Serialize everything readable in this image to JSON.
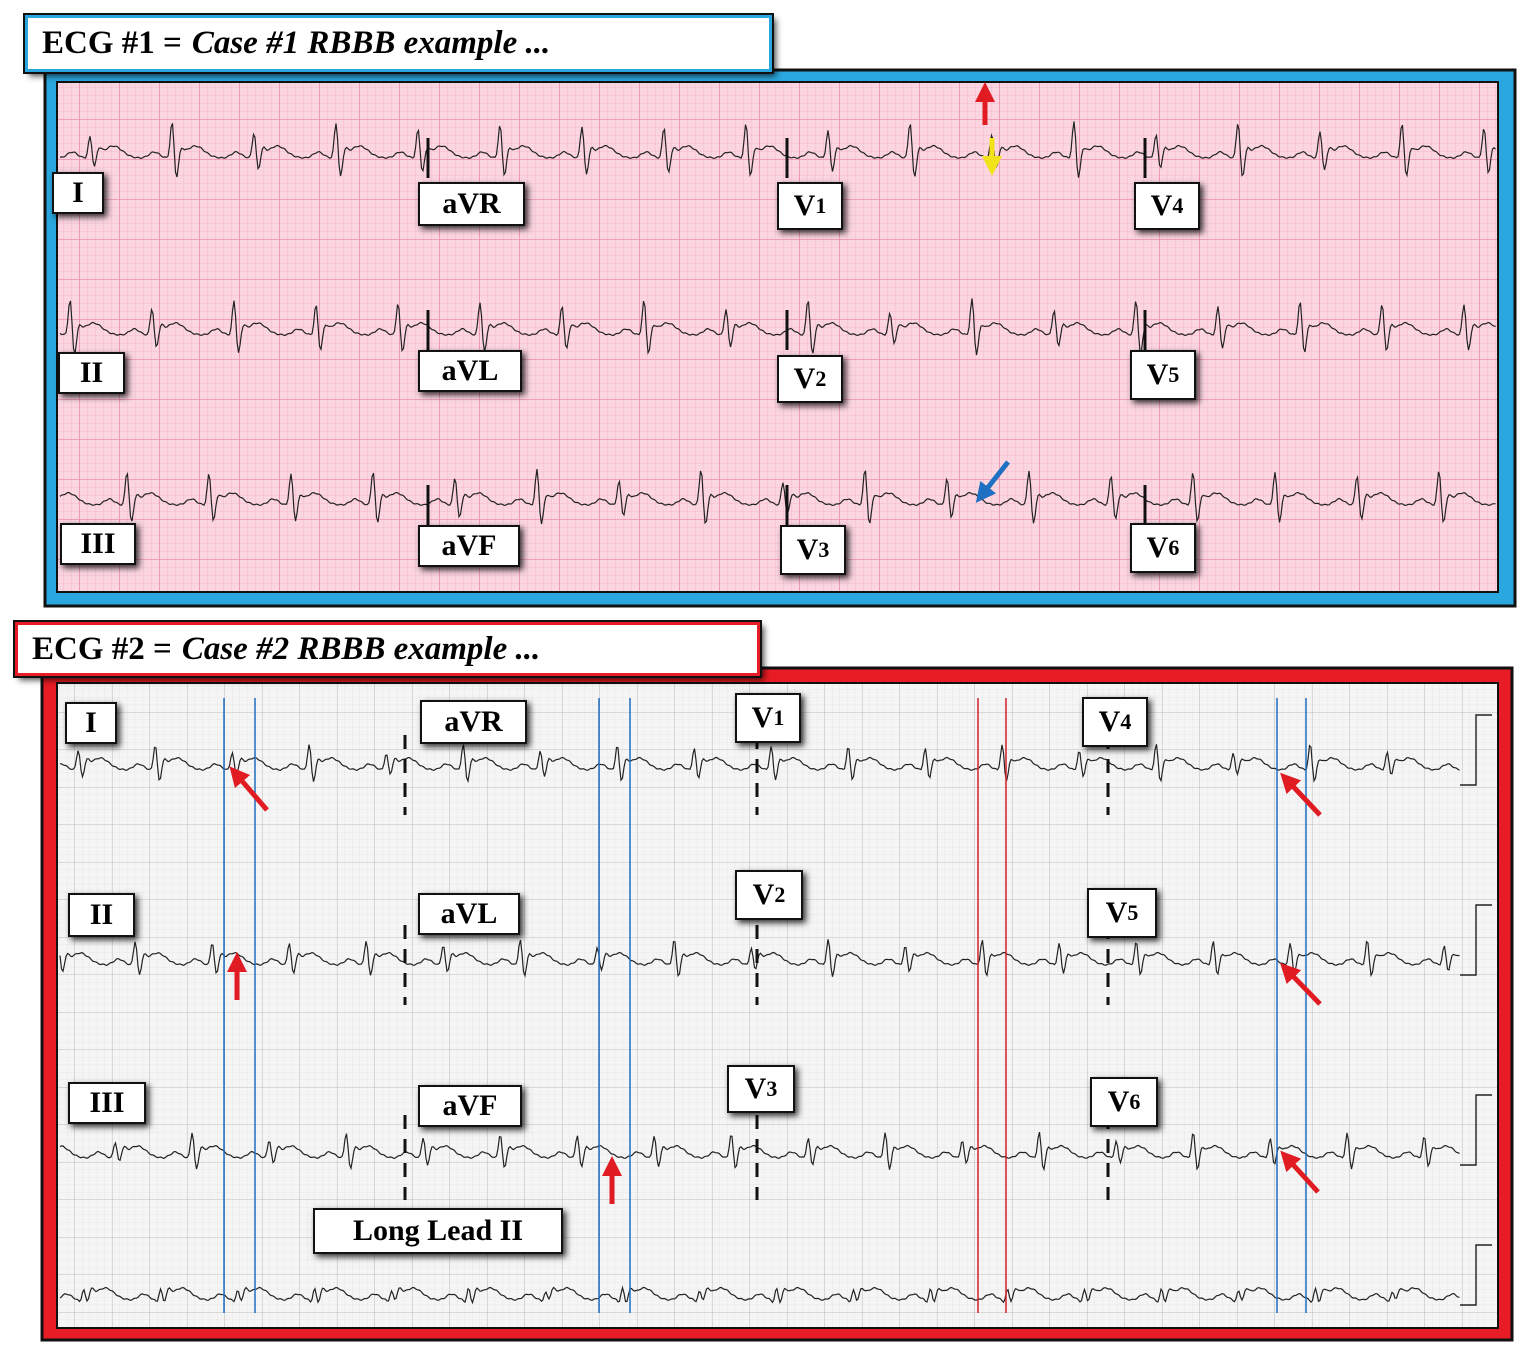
{
  "panels": [
    {
      "title": {
        "prefix": "ECG #1 =",
        "case": "Case #1 RBBB example ..."
      },
      "leads": [
        {
          "name": "I"
        },
        {
          "name": "aVR"
        },
        {
          "name": "V",
          "sub": "1"
        },
        {
          "name": "V",
          "sub": "4"
        },
        {
          "name": "II"
        },
        {
          "name": "aVL"
        },
        {
          "name": "V",
          "sub": "2"
        },
        {
          "name": "V",
          "sub": "5"
        },
        {
          "name": "III"
        },
        {
          "name": "aVF"
        },
        {
          "name": "V",
          "sub": "3"
        },
        {
          "name": "V",
          "sub": "6"
        }
      ]
    },
    {
      "title": {
        "prefix": "ECG #2 =",
        "case": "Case #2 RBBB example ..."
      },
      "leads": [
        {
          "name": "I"
        },
        {
          "name": "aVR"
        },
        {
          "name": "V",
          "sub": "1"
        },
        {
          "name": "V",
          "sub": "4"
        },
        {
          "name": "II"
        },
        {
          "name": "aVL"
        },
        {
          "name": "V",
          "sub": "2"
        },
        {
          "name": "V",
          "sub": "5"
        },
        {
          "name": "III"
        },
        {
          "name": "aVF"
        },
        {
          "name": "V",
          "sub": "3"
        },
        {
          "name": "V",
          "sub": "6"
        }
      ],
      "rhythm_strip": "Long Lead II"
    }
  ]
}
